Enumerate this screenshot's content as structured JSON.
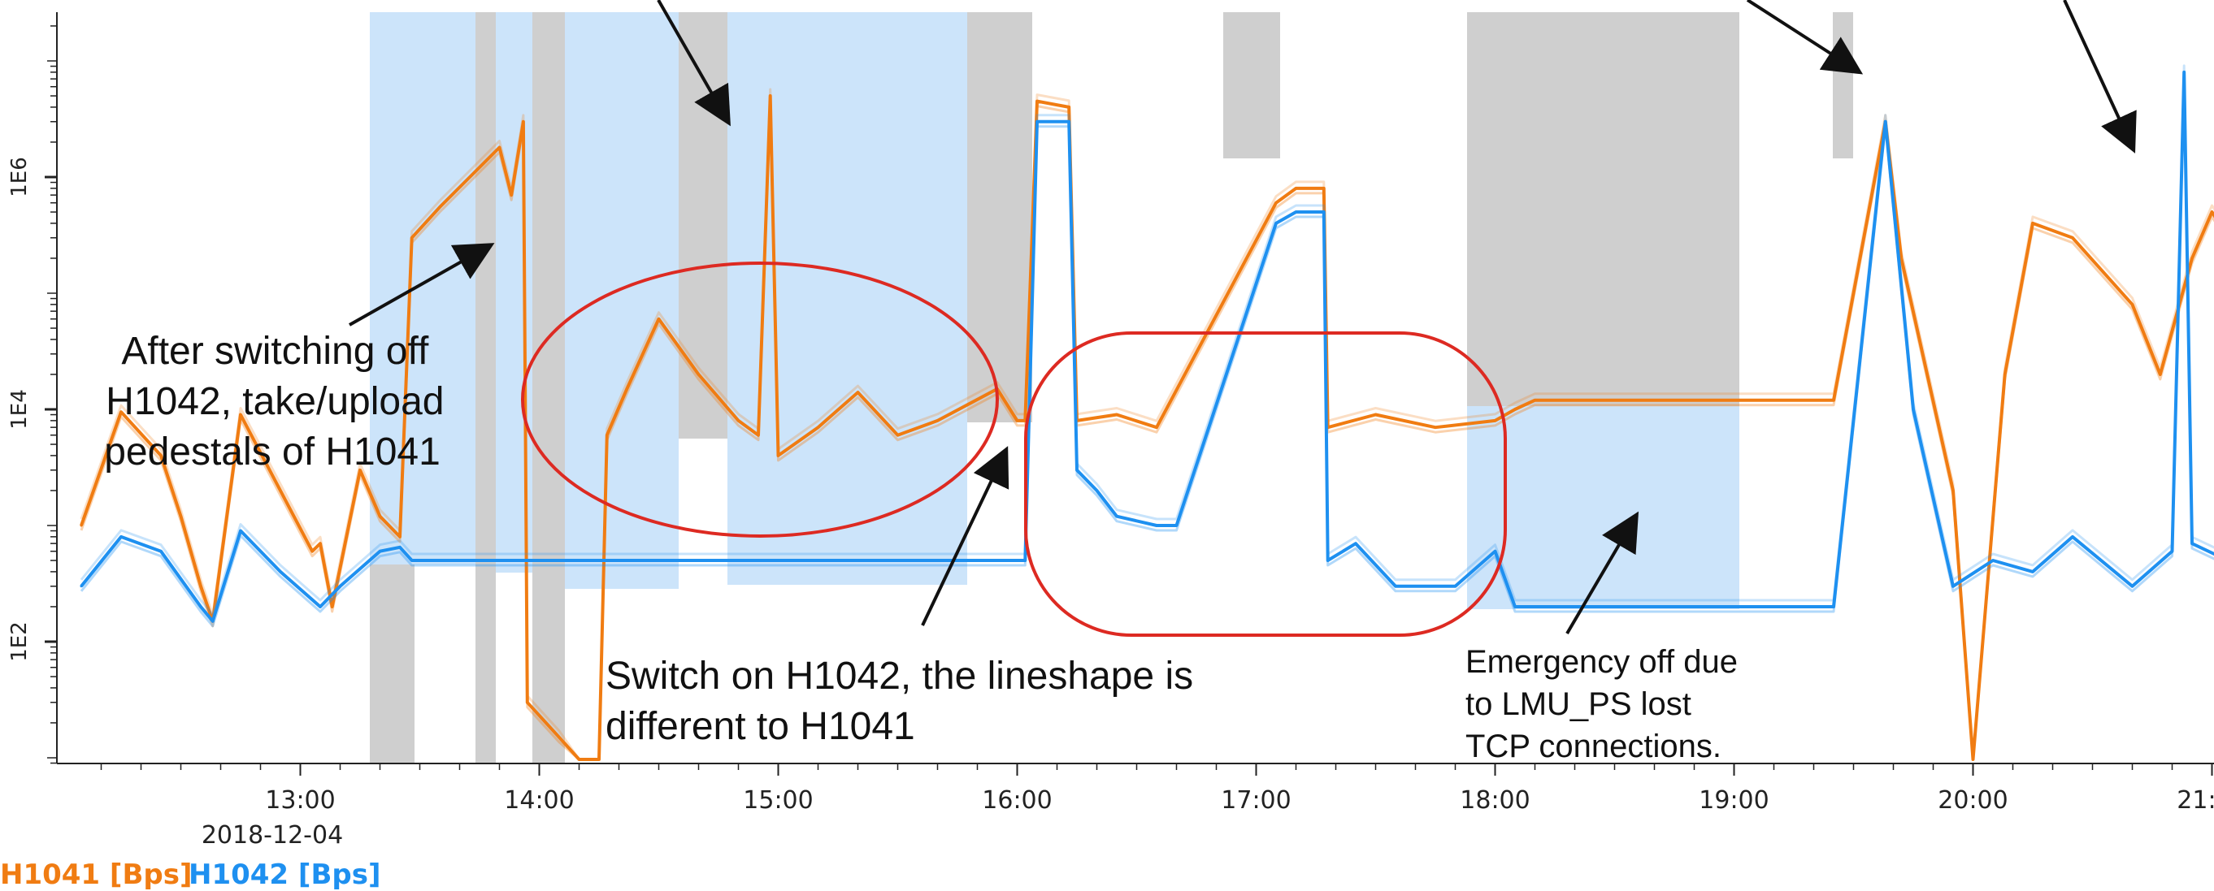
{
  "chart_data": {
    "type": "line",
    "x_axis": {
      "date_label": "2018-12-04",
      "tick_labels": [
        "13:00",
        "14:00",
        "15:00",
        "16:00",
        "17:00",
        "18:00",
        "19:00",
        "20:00",
        "21:00"
      ],
      "range": [
        "12:05",
        "21:25"
      ]
    },
    "y_axis": {
      "scale": "log",
      "tick_labels": [
        "1E2",
        "1E4",
        "1E6"
      ],
      "range": [
        3,
        30000000
      ]
    },
    "legend": [
      "H1041 [Bps]",
      "H1042 [Bps]"
    ],
    "series": [
      {
        "name": "H1041 [Bps]",
        "color": "#f07c12",
        "points": [
          [
            "12:05",
            1000
          ],
          [
            "12:15",
            9500
          ],
          [
            "12:25",
            4000
          ],
          [
            "12:30",
            1200
          ],
          [
            "12:35",
            300
          ],
          [
            "12:38",
            150
          ],
          [
            "12:45",
            9000
          ],
          [
            "12:55",
            2000
          ],
          [
            "13:03",
            600
          ],
          [
            "13:05",
            700
          ],
          [
            "13:08",
            200
          ],
          [
            "13:15",
            3000
          ],
          [
            "13:20",
            1200
          ],
          [
            "13:25",
            800
          ],
          [
            "13:28",
            300000
          ],
          [
            "13:35",
            550000
          ],
          [
            "13:50",
            1800000
          ],
          [
            "13:53",
            700000
          ],
          [
            "13:56",
            3000000
          ],
          [
            "13:57",
            30
          ],
          [
            "14:05",
            15
          ],
          [
            "14:10",
            8
          ],
          [
            "14:15",
            4
          ],
          [
            "14:17",
            6000
          ],
          [
            "14:22",
            15000
          ],
          [
            "14:30",
            60000
          ],
          [
            "14:40",
            20000
          ],
          [
            "14:50",
            8000
          ],
          [
            "14:55",
            6000
          ],
          [
            "14:58",
            5000000
          ],
          [
            "15:00",
            4000
          ],
          [
            "15:10",
            7000
          ],
          [
            "15:20",
            14000
          ],
          [
            "15:30",
            6000
          ],
          [
            "15:40",
            8000
          ],
          [
            "15:55",
            15000
          ],
          [
            "16:00",
            8000
          ],
          [
            "16:02",
            8000
          ],
          [
            "16:05",
            4500000
          ],
          [
            "16:13",
            4000000
          ],
          [
            "16:15",
            8000
          ],
          [
            "16:25",
            9000
          ],
          [
            "16:35",
            7000
          ],
          [
            "17:05",
            600000
          ],
          [
            "17:10",
            800000
          ],
          [
            "17:17",
            800000
          ],
          [
            "17:18",
            7000
          ],
          [
            "17:30",
            9000
          ],
          [
            "17:45",
            7000
          ],
          [
            "18:00",
            8000
          ],
          [
            "18:05",
            10000
          ],
          [
            "18:10",
            12000
          ],
          [
            "19:00",
            12000
          ],
          [
            "19:25",
            12000
          ],
          [
            "19:38",
            3000000
          ],
          [
            "19:42",
            200000
          ],
          [
            "19:55",
            2000
          ],
          [
            "20:00",
            3
          ],
          [
            "20:08",
            20000
          ],
          [
            "20:15",
            400000
          ],
          [
            "20:25",
            300000
          ],
          [
            "20:40",
            80000
          ],
          [
            "20:47",
            20000
          ],
          [
            "20:55",
            200000
          ],
          [
            "21:00",
            500000
          ],
          [
            "21:10",
            150000
          ],
          [
            "21:20",
            40000
          ],
          [
            "21:25",
            20000
          ]
        ]
      },
      {
        "name": "H1042 [Bps]",
        "color": "#1e90f0",
        "points": [
          [
            "12:05",
            300
          ],
          [
            "12:15",
            800
          ],
          [
            "12:25",
            600
          ],
          [
            "12:35",
            200
          ],
          [
            "12:38",
            150
          ],
          [
            "12:45",
            900
          ],
          [
            "12:55",
            400
          ],
          [
            "13:05",
            200
          ],
          [
            "13:10",
            300
          ],
          [
            "13:20",
            600
          ],
          [
            "13:25",
            650
          ],
          [
            "13:28",
            500
          ],
          [
            "14:00",
            500
          ],
          [
            "15:00",
            500
          ],
          [
            "16:00",
            500
          ],
          [
            "16:02",
            500
          ],
          [
            "16:05",
            3000000
          ],
          [
            "16:13",
            3000000
          ],
          [
            "16:15",
            3000
          ],
          [
            "16:20",
            2000
          ],
          [
            "16:25",
            1200
          ],
          [
            "16:35",
            1000
          ],
          [
            "16:40",
            1000
          ],
          [
            "17:05",
            400000
          ],
          [
            "17:10",
            500000
          ],
          [
            "17:17",
            500000
          ],
          [
            "17:18",
            500
          ],
          [
            "17:25",
            700
          ],
          [
            "17:35",
            300
          ],
          [
            "17:50",
            300
          ],
          [
            "18:00",
            600
          ],
          [
            "18:05",
            200
          ],
          [
            "18:10",
            200
          ],
          [
            "19:00",
            200
          ],
          [
            "19:25",
            200
          ],
          [
            "19:38",
            3000000
          ],
          [
            "19:45",
            10000
          ],
          [
            "19:55",
            300
          ],
          [
            "20:05",
            500
          ],
          [
            "20:15",
            400
          ],
          [
            "20:25",
            800
          ],
          [
            "20:40",
            300
          ],
          [
            "20:50",
            600
          ],
          [
            "20:53",
            8000000
          ],
          [
            "20:55",
            700
          ],
          [
            "21:10",
            400
          ],
          [
            "21:25",
            300
          ]
        ]
      }
    ],
    "annotations": [
      {
        "text": "After switching off H1042, take/upload pedestals of H1041",
        "lines": [
          "After switching off",
          "H1042, take/upload",
          "pedestals of H1041"
        ]
      },
      {
        "text": "Switch on H1042, the lineshape is different to H1041",
        "lines": [
          "Switch on H1042, the lineshape is",
          "different to H1041"
        ]
      },
      {
        "text": "Emergency off due to LMU_PS lost TCP connections.",
        "lines": [
          "Emergency off due",
          "to LMU_PS lost",
          "TCP connections."
        ]
      }
    ],
    "grid": false
  }
}
